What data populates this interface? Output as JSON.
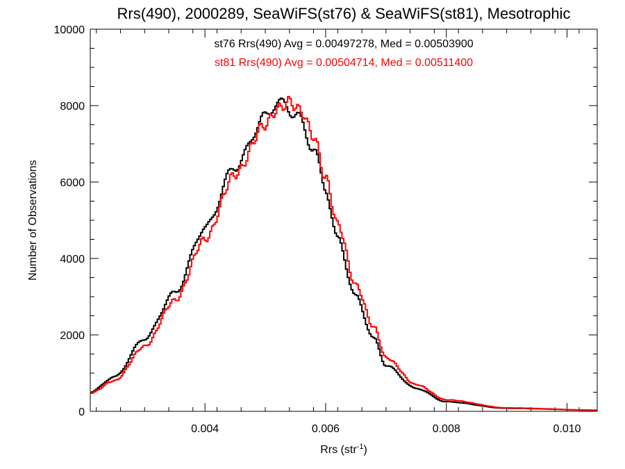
{
  "chart_data": {
    "type": "line",
    "title": "Rrs(490), 2000289, SeaWiFS(st76) & SeaWiFS(st81), Mesotrophic",
    "xlabel": "Rrs (str",
    "xlabel_sup": "-1",
    "xlabel_end": ")",
    "ylabel": "Number of Observations",
    "xlim": [
      0.0021,
      0.0105
    ],
    "ylim": [
      0,
      10000
    ],
    "x_ticks": [
      0.004,
      0.006,
      0.008,
      0.01
    ],
    "x_tick_labels": [
      "0.004",
      "0.006",
      "0.008",
      "0.010"
    ],
    "y_ticks": [
      0,
      2000,
      4000,
      6000,
      8000,
      10000
    ],
    "y_tick_labels": [
      "0",
      "2000",
      "4000",
      "6000",
      "8000",
      "10000"
    ],
    "annotations": [
      {
        "text": "st76 Rrs(490) Avg = 0.00497278, Med = 0.00503900",
        "color": "#000000"
      },
      {
        "text": "st81 Rrs(490) Avg = 0.00504714, Med = 0.00511400",
        "color": "#ff0000"
      }
    ],
    "series": [
      {
        "color": "#000000",
        "x": [
          0.0021,
          0.0025,
          0.003,
          0.0035,
          0.004,
          0.0045,
          0.005,
          0.0052,
          0.0055,
          0.0058,
          0.006,
          0.0062,
          0.0065,
          0.0068,
          0.007,
          0.0075,
          0.008,
          0.009,
          0.0105
        ],
        "y": [
          500,
          900,
          1900,
          3100,
          4800,
          6400,
          7700,
          8100,
          7800,
          6900,
          5800,
          4500,
          3000,
          1900,
          1200,
          600,
          250,
          80,
          30
        ]
      },
      {
        "color": "#ff0000",
        "x": [
          0.0021,
          0.0025,
          0.003,
          0.0035,
          0.004,
          0.0045,
          0.005,
          0.0052,
          0.0054,
          0.0056,
          0.0058,
          0.006,
          0.0062,
          0.0065,
          0.0068,
          0.007,
          0.0075,
          0.008,
          0.009,
          0.0105
        ],
        "y": [
          480,
          800,
          1700,
          2900,
          4500,
          6200,
          7500,
          7900,
          8100,
          7850,
          7200,
          6100,
          4900,
          3300,
          2200,
          1400,
          700,
          300,
          90,
          30
        ]
      }
    ]
  }
}
